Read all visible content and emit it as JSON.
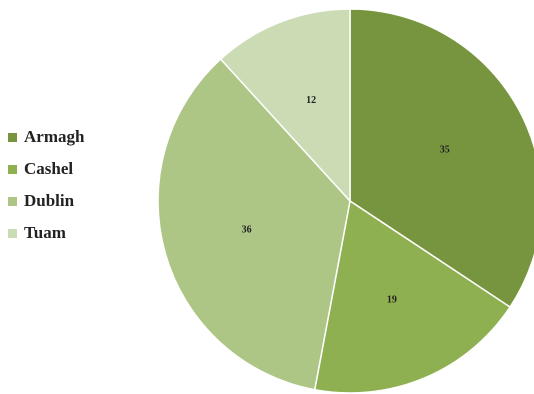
{
  "chart_data": {
    "type": "pie",
    "categories": [
      "Armagh",
      "Cashel",
      "Dublin",
      "Tuam"
    ],
    "values": [
      35,
      19,
      36,
      12
    ],
    "colors": [
      "#77953f",
      "#8fb050",
      "#adc585",
      "#cbdbb4"
    ],
    "legend_position": "left",
    "start_angle": "12 o'clock",
    "direction": "clockwise",
    "data_labels": true
  }
}
